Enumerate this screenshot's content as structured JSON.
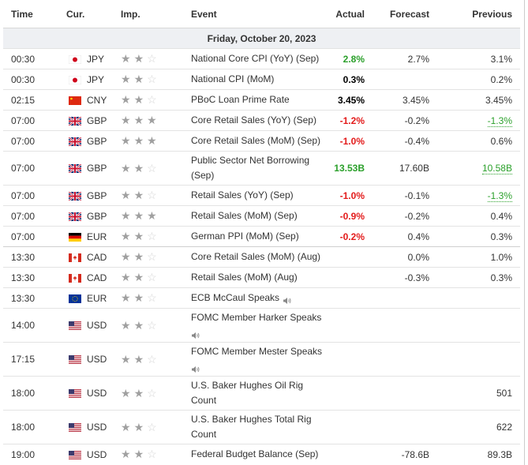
{
  "header": {
    "time": "Time",
    "currency": "Cur.",
    "importance": "Imp.",
    "event": "Event",
    "actual": "Actual",
    "forecast": "Forecast",
    "previous": "Previous"
  },
  "date_label": "Friday, October 20, 2023",
  "colors": {
    "positive": "#2ba02b",
    "negative": "#e31b1b",
    "star_filled": "#a0a0a0",
    "star_empty": "#d4d4d4",
    "date_row_bg": "#eef0f3"
  },
  "rows": [
    {
      "time": "00:30",
      "flag": "jp-flag-icon",
      "currency": "JPY",
      "stars": 2,
      "event": "National Core CPI (YoY) (Sep)",
      "actual": "2.8%",
      "actual_color": "green",
      "forecast": "2.7%",
      "previous": "3.1%",
      "previous_style": "plain"
    },
    {
      "time": "00:30",
      "flag": "jp-flag-icon",
      "currency": "JPY",
      "stars": 2,
      "event": "National CPI (MoM)",
      "actual": "0.3%",
      "actual_color": "black",
      "forecast": "",
      "previous": "0.2%",
      "previous_style": "plain"
    },
    {
      "time": "02:15",
      "flag": "cn-flag-icon",
      "currency": "CNY",
      "stars": 2,
      "event": "PBoC Loan Prime Rate",
      "actual": "3.45%",
      "actual_color": "black",
      "forecast": "3.45%",
      "previous": "3.45%",
      "previous_style": "plain"
    },
    {
      "time": "07:00",
      "flag": "gb-flag-icon",
      "currency": "GBP",
      "stars": 3,
      "event": "Core Retail Sales (YoY) (Sep)",
      "actual": "-1.2%",
      "actual_color": "red",
      "forecast": "-0.2%",
      "previous": "-1.3%",
      "previous_style": "green-underline"
    },
    {
      "time": "07:00",
      "flag": "gb-flag-icon",
      "currency": "GBP",
      "stars": 3,
      "event": "Core Retail Sales (MoM) (Sep)",
      "actual": "-1.0%",
      "actual_color": "red",
      "forecast": "-0.4%",
      "previous": "0.6%",
      "previous_style": "plain"
    },
    {
      "time": "07:00",
      "flag": "gb-flag-icon",
      "currency": "GBP",
      "stars": 2,
      "event": "Public Sector Net Borrowing (Sep)",
      "actual": "13.53B",
      "actual_color": "green",
      "forecast": "17.60B",
      "previous": "10.58B",
      "previous_style": "green-underline"
    },
    {
      "time": "07:00",
      "flag": "gb-flag-icon",
      "currency": "GBP",
      "stars": 2,
      "event": "Retail Sales (YoY) (Sep)",
      "actual": "-1.0%",
      "actual_color": "red",
      "forecast": "-0.1%",
      "previous": "-1.3%",
      "previous_style": "green-underline"
    },
    {
      "time": "07:00",
      "flag": "gb-flag-icon",
      "currency": "GBP",
      "stars": 3,
      "event": "Retail Sales (MoM) (Sep)",
      "actual": "-0.9%",
      "actual_color": "red",
      "forecast": "-0.2%",
      "previous": "0.4%",
      "previous_style": "plain"
    },
    {
      "time": "07:00",
      "flag": "de-flag-icon",
      "currency": "EUR",
      "stars": 2,
      "event": "German PPI (MoM) (Sep)",
      "actual": "-0.2%",
      "actual_color": "red",
      "forecast": "0.4%",
      "previous": "0.3%",
      "previous_style": "plain"
    },
    {
      "time": "13:30",
      "flag": "ca-flag-icon",
      "currency": "CAD",
      "stars": 2,
      "event": "Core Retail Sales (MoM) (Aug)",
      "actual": "",
      "actual_color": "black",
      "forecast": "0.0%",
      "previous": "1.0%",
      "previous_style": "plain"
    },
    {
      "time": "13:30",
      "flag": "ca-flag-icon",
      "currency": "CAD",
      "stars": 2,
      "event": "Retail Sales (MoM) (Aug)",
      "actual": "",
      "actual_color": "black",
      "forecast": "-0.3%",
      "previous": "0.3%",
      "previous_style": "plain"
    },
    {
      "time": "13:30",
      "flag": "eu-flag-icon",
      "currency": "EUR",
      "stars": 2,
      "event": "ECB McCaul Speaks",
      "speaker": true,
      "speaker_newline": false,
      "actual": "",
      "actual_color": "black",
      "forecast": "",
      "previous": "",
      "previous_style": "plain"
    },
    {
      "time": "14:00",
      "flag": "us-flag-icon",
      "currency": "USD",
      "stars": 2,
      "event": "FOMC Member Harker Speaks",
      "speaker": true,
      "speaker_newline": true,
      "actual": "",
      "actual_color": "black",
      "forecast": "",
      "previous": "",
      "previous_style": "plain"
    },
    {
      "time": "17:15",
      "flag": "us-flag-icon",
      "currency": "USD",
      "stars": 2,
      "event": "FOMC Member Mester Speaks",
      "speaker": true,
      "speaker_newline": true,
      "actual": "",
      "actual_color": "black",
      "forecast": "",
      "previous": "",
      "previous_style": "plain"
    },
    {
      "time": "18:00",
      "flag": "us-flag-icon",
      "currency": "USD",
      "stars": 2,
      "event": "U.S. Baker Hughes Oil Rig Count",
      "actual": "",
      "actual_color": "black",
      "forecast": "",
      "previous": "501",
      "previous_style": "plain"
    },
    {
      "time": "18:00",
      "flag": "us-flag-icon",
      "currency": "USD",
      "stars": 2,
      "event": "U.S. Baker Hughes Total Rig Count",
      "actual": "",
      "actual_color": "black",
      "forecast": "",
      "previous": "622",
      "previous_style": "plain"
    },
    {
      "time": "19:00",
      "flag": "us-flag-icon",
      "currency": "USD",
      "stars": 2,
      "event": "Federal Budget Balance (Sep)",
      "actual": "",
      "actual_color": "black",
      "forecast": "-78.6B",
      "previous": "89.3B",
      "previous_style": "plain"
    }
  ]
}
